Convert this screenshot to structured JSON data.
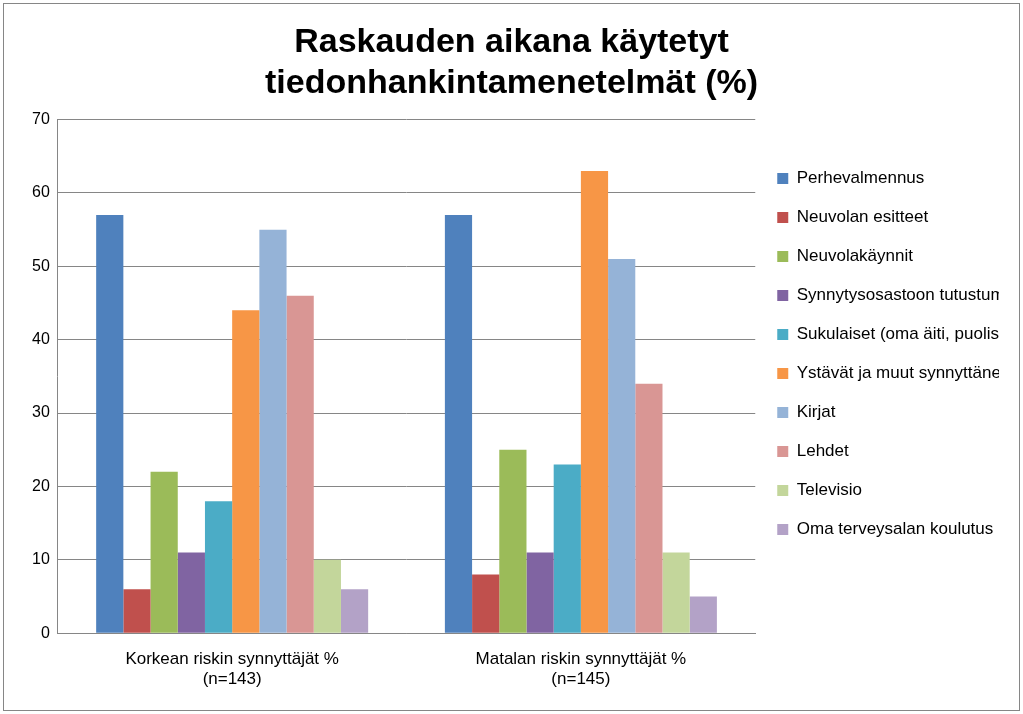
{
  "chart_data": {
    "type": "bar",
    "title": "Raskauden aikana käytetyt tiedonhankintamenetelmät (%)",
    "categories": [
      "Korkean riskin synnyttäjät % (n=143)",
      "Matalan riskin synnyttäjät % (n=145)"
    ],
    "series": [
      {
        "name": "Perhevalmennus",
        "color": "#4F81BD",
        "values": [
          57,
          57
        ]
      },
      {
        "name": "Neuvolan esitteet",
        "color": "#C0504D",
        "values": [
          6,
          8
        ]
      },
      {
        "name": "Neuvolakäynnit",
        "color": "#9BBB59",
        "values": [
          22,
          25
        ]
      },
      {
        "name": "Synnytysosastoon tutustuminen",
        "color": "#8064A2",
        "values": [
          11,
          11
        ]
      },
      {
        "name": "Sukulaiset (oma äiti, puoliso, sisko)",
        "color": "#4BACC6",
        "values": [
          18,
          23
        ]
      },
      {
        "name": "Ystävät ja muut synnyttäneet äidit",
        "color": "#F79646",
        "values": [
          44,
          63
        ]
      },
      {
        "name": "Kirjat",
        "color": "#95B3D7",
        "values": [
          55,
          51
        ]
      },
      {
        "name": "Lehdet",
        "color": "#D99694",
        "values": [
          46,
          34
        ]
      },
      {
        "name": "Televisio",
        "color": "#C3D69B",
        "values": [
          10,
          11
        ]
      },
      {
        "name": "Oma terveysalan koulutus",
        "color": "#B3A2C7",
        "values": [
          6,
          5
        ]
      }
    ],
    "ylim": [
      0,
      70
    ],
    "yticks": [
      0,
      10,
      20,
      30,
      40,
      50,
      60,
      70
    ],
    "grid": true,
    "legend": "right"
  }
}
